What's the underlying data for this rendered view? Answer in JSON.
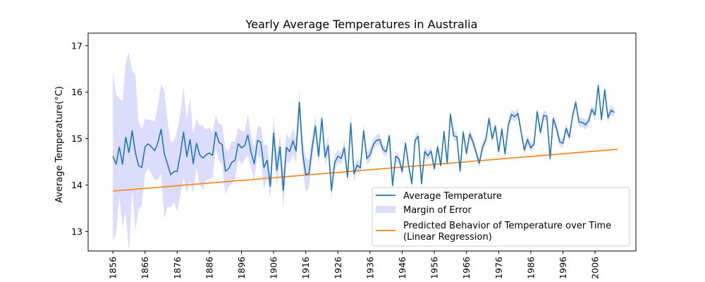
{
  "chart_data": {
    "type": "line",
    "title": "Yearly Average Temperatures in Australia",
    "xlabel": "",
    "ylabel": "Average Temperature(°C)",
    "xlim": [
      1848.3,
      2018.7
    ],
    "ylim": [
      12.58,
      17.27
    ],
    "x_ticks": [
      1856,
      1866,
      1876,
      1886,
      1896,
      1906,
      1916,
      1926,
      1936,
      1946,
      1956,
      1966,
      1976,
      1986,
      1996,
      2006
    ],
    "y_ticks": [
      13,
      14,
      15,
      16,
      17
    ],
    "grid": false,
    "legend_position": "lower-right",
    "colors": {
      "average": "#1f77b4",
      "band": "#dcdcfc",
      "regression": "#ff7f0e"
    },
    "series": [
      {
        "name": "Average Temperature",
        "kind": "line",
        "x_start": 1856,
        "values": [
          14.62,
          14.45,
          14.82,
          14.45,
          15.03,
          14.7,
          15.17,
          14.7,
          14.42,
          14.38,
          14.82,
          14.89,
          14.82,
          14.74,
          14.91,
          15.2,
          14.67,
          14.45,
          14.22,
          14.29,
          14.29,
          14.67,
          15.14,
          14.61,
          14.98,
          14.46,
          14.9,
          14.65,
          14.58,
          14.65,
          14.69,
          14.64,
          15.14,
          14.92,
          14.87,
          14.3,
          14.35,
          14.49,
          14.53,
          14.89,
          14.8,
          14.85,
          15.08,
          14.7,
          14.46,
          14.96,
          14.92,
          14.38,
          14.53,
          13.97,
          15.12,
          14.32,
          14.82,
          13.88,
          14.81,
          14.72,
          14.95,
          14.73,
          15.78,
          14.72,
          14.22,
          14.25,
          14.81,
          15.27,
          14.62,
          15.43,
          14.6,
          14.85,
          13.88,
          14.48,
          14.62,
          14.57,
          14.8,
          14.17,
          15.33,
          14.24,
          14.43,
          14.37,
          15.17,
          14.57,
          14.65,
          14.87,
          14.96,
          14.98,
          14.77,
          14.71,
          15.06,
          13.99,
          14.62,
          14.56,
          14.29,
          14.9,
          14.42,
          14.03,
          14.96,
          15.05,
          14.03,
          14.72,
          14.63,
          14.73,
          14.35,
          14.82,
          14.42,
          15.15,
          14.47,
          15.52,
          15.06,
          15.04,
          14.3,
          15.14,
          14.68,
          15.1,
          14.93,
          14.7,
          14.47,
          14.82,
          14.97,
          15.43,
          15.0,
          15.27,
          14.72,
          15.2,
          14.67,
          15.29,
          15.52,
          15.47,
          15.54,
          15.14,
          14.75,
          14.98,
          14.8,
          14.88,
          15.58,
          15.13,
          15.5,
          15.48,
          14.57,
          15.43,
          15.22,
          14.93,
          14.9,
          15.22,
          15.03,
          15.49,
          15.78,
          15.35,
          15.35,
          15.3,
          15.38,
          15.63,
          15.51,
          16.14,
          15.41,
          16.05,
          15.45,
          15.61,
          15.56
        ]
      },
      {
        "name": "Margin of Error",
        "kind": "band",
        "x_start": 1856,
        "half_width": [
          1.82,
          1.5,
          1.05,
          1.35,
          1.62,
          2.15,
          1.3,
          1.68,
          0.95,
          0.82,
          0.6,
          0.52,
          0.58,
          0.62,
          0.8,
          0.96,
          1.38,
          0.92,
          0.7,
          0.66,
          0.86,
          0.88,
          0.96,
          0.8,
          0.88,
          0.64,
          0.52,
          0.64,
          0.7,
          0.54,
          0.56,
          0.48,
          0.36,
          0.4,
          0.42,
          0.5,
          0.38,
          0.46,
          0.4,
          0.34,
          0.36,
          0.3,
          0.44,
          0.36,
          0.34,
          0.3,
          0.34,
          0.48,
          0.34,
          0.26,
          0.38,
          0.34,
          0.26,
          0.4,
          0.3,
          0.26,
          0.28,
          0.26,
          0.3,
          0.3,
          0.38,
          0.3,
          0.22,
          0.22,
          0.2,
          0.2,
          0.18,
          0.22,
          0.18,
          0.16,
          0.14,
          0.12,
          0.16,
          0.16,
          0.22,
          0.16,
          0.14,
          0.14,
          0.12,
          0.14,
          0.14,
          0.12,
          0.12,
          0.12,
          0.1,
          0.12,
          0.1,
          0.12,
          0.1,
          0.1,
          0.1,
          0.1,
          0.1,
          0.1,
          0.1,
          0.1,
          0.1,
          0.1,
          0.1,
          0.1,
          0.1,
          0.1,
          0.1,
          0.12,
          0.1,
          0.1,
          0.1,
          0.1,
          0.1,
          0.1,
          0.1,
          0.1,
          0.1,
          0.1,
          0.1,
          0.1,
          0.1,
          0.1,
          0.1,
          0.1,
          0.1,
          0.1,
          0.1,
          0.1,
          0.1,
          0.1,
          0.1,
          0.1,
          0.1,
          0.1,
          0.1,
          0.1,
          0.1,
          0.1,
          0.1,
          0.1,
          0.1,
          0.1,
          0.1,
          0.1,
          0.1,
          0.1,
          0.1,
          0.1,
          0.1,
          0.1,
          0.1,
          0.1,
          0.1,
          0.1,
          0.1,
          0.1,
          0.1,
          0.1,
          0.1,
          0.1,
          0.1
        ]
      },
      {
        "name": "Predicted Behavior of Temperature over Time",
        "name_line2": "(Linear Regression)",
        "kind": "line",
        "x": [
          1856,
          2013
        ],
        "values": [
          13.87,
          14.77
        ]
      }
    ]
  }
}
